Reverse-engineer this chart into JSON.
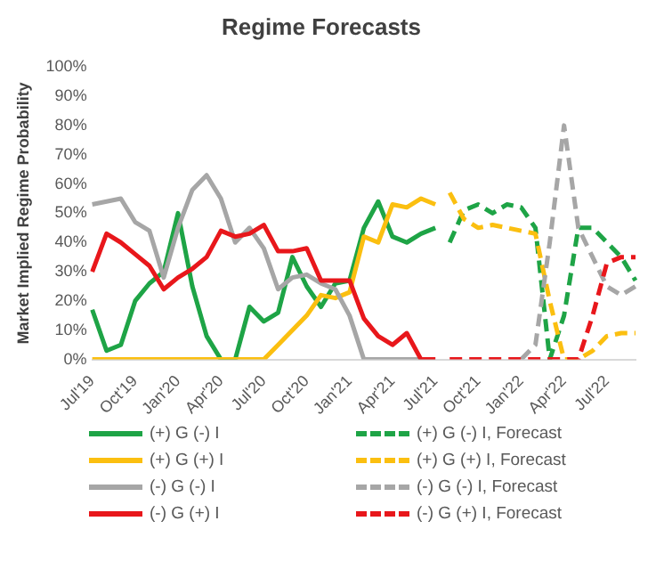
{
  "chart_data": {
    "type": "line",
    "title": "Regime Forecasts",
    "ylabel": "Market Implied Regime Probability",
    "categories": [
      "Jul'19",
      null,
      null,
      "Oct'19",
      null,
      null,
      "Jan'20",
      null,
      null,
      "Apr'20",
      null,
      null,
      "Jul'20",
      null,
      null,
      "Oct'20",
      null,
      null,
      "Jan'21",
      null,
      null,
      "Apr'21",
      null,
      null,
      "Jul'21",
      null,
      null,
      "Oct'21",
      null,
      null,
      "Jan'22",
      null,
      null,
      "Apr'22",
      null,
      null,
      "Jul'22",
      null,
      null
    ],
    "ylim": [
      0,
      100
    ],
    "yticks": [
      {
        "value": 0,
        "label": "0%"
      },
      {
        "value": 10,
        "label": "10%"
      },
      {
        "value": 20,
        "label": "20%"
      },
      {
        "value": 30,
        "label": "30%"
      },
      {
        "value": 40,
        "label": "40%"
      },
      {
        "value": 50,
        "label": "50%"
      },
      {
        "value": 60,
        "label": "60%"
      },
      {
        "value": 70,
        "label": "70%"
      },
      {
        "value": 80,
        "label": "80%"
      },
      {
        "value": 90,
        "label": "90%"
      },
      {
        "value": 100,
        "label": "100%"
      }
    ],
    "grid": false,
    "legend": "bottom",
    "marker": "none",
    "series": [
      {
        "name": "(+) G (-) I",
        "color": "#1ea446",
        "line_style": "solid",
        "values": [
          17,
          3,
          5,
          20,
          26,
          30,
          50,
          25,
          8,
          0,
          0,
          18,
          13,
          16,
          35,
          25,
          18,
          26,
          27,
          45,
          54,
          42,
          40,
          43,
          45,
          null,
          null,
          null,
          null,
          null,
          null,
          null,
          null,
          null,
          null,
          null,
          null,
          null,
          null
        ]
      },
      {
        "name": "(+) G (-) I, Forecast",
        "color": "#1ea446",
        "line_style": "dashed",
        "values": [
          null,
          null,
          null,
          null,
          null,
          null,
          null,
          null,
          null,
          null,
          null,
          null,
          null,
          null,
          null,
          null,
          null,
          null,
          null,
          null,
          null,
          null,
          null,
          null,
          null,
          40,
          51,
          53,
          50,
          53,
          52,
          45,
          0,
          15,
          45,
          45,
          40,
          35,
          27
        ]
      },
      {
        "name": "(+) G (+) I",
        "color": "#fbbf10",
        "line_style": "solid",
        "values": [
          0,
          0,
          0,
          0,
          0,
          0,
          0,
          0,
          0,
          0,
          0,
          0,
          0,
          5,
          10,
          15,
          22,
          21,
          23,
          42,
          40,
          53,
          52,
          55,
          53,
          null,
          null,
          null,
          null,
          null,
          null,
          null,
          null,
          null,
          null,
          null,
          null,
          null,
          null
        ]
      },
      {
        "name": "(+) G (+) I, Forecast",
        "color": "#fbbf10",
        "line_style": "dashed",
        "values": [
          null,
          null,
          null,
          null,
          null,
          null,
          null,
          null,
          null,
          null,
          null,
          null,
          null,
          null,
          null,
          null,
          null,
          null,
          null,
          null,
          null,
          null,
          null,
          null,
          null,
          57,
          48,
          45,
          46,
          45,
          44,
          43,
          20,
          0,
          0,
          3,
          8,
          9,
          9
        ]
      },
      {
        "name": "(-) G (-) I",
        "color": "#a6a6a6",
        "line_style": "solid",
        "values": [
          53,
          54,
          55,
          47,
          44,
          28,
          45,
          58,
          63,
          55,
          40,
          45,
          38,
          24,
          28,
          29,
          26,
          24,
          15,
          0,
          0,
          0,
          0,
          0,
          0,
          null,
          null,
          null,
          null,
          null,
          null,
          null,
          null,
          null,
          null,
          null,
          null,
          null,
          null
        ]
      },
      {
        "name": "(-) G (-) I, Forecast",
        "color": "#a6a6a6",
        "line_style": "dashed",
        "values": [
          null,
          null,
          null,
          null,
          null,
          null,
          null,
          null,
          null,
          null,
          null,
          null,
          null,
          null,
          null,
          null,
          null,
          null,
          null,
          null,
          null,
          null,
          null,
          null,
          null,
          null,
          null,
          null,
          null,
          null,
          0,
          5,
          40,
          80,
          45,
          35,
          25,
          22,
          25
        ]
      },
      {
        "name": "(-) G (+) I",
        "color": "#e8171b",
        "line_style": "solid",
        "values": [
          30,
          43,
          40,
          36,
          32,
          24,
          28,
          31,
          35,
          44,
          42,
          43,
          46,
          37,
          37,
          38,
          27,
          27,
          27,
          14,
          8,
          5,
          9,
          0,
          0,
          null,
          null,
          null,
          null,
          null,
          null,
          null,
          null,
          null,
          null,
          null,
          null,
          null,
          null
        ]
      },
      {
        "name": "(-) G (+) I, Forecast",
        "color": "#e8171b",
        "line_style": "dashed",
        "values": [
          null,
          null,
          null,
          null,
          null,
          null,
          null,
          null,
          null,
          null,
          null,
          null,
          null,
          null,
          null,
          null,
          null,
          null,
          null,
          null,
          null,
          null,
          null,
          null,
          null,
          0,
          0,
          0,
          0,
          0,
          0,
          0,
          0,
          0,
          0,
          15,
          33,
          35,
          35
        ]
      }
    ]
  }
}
